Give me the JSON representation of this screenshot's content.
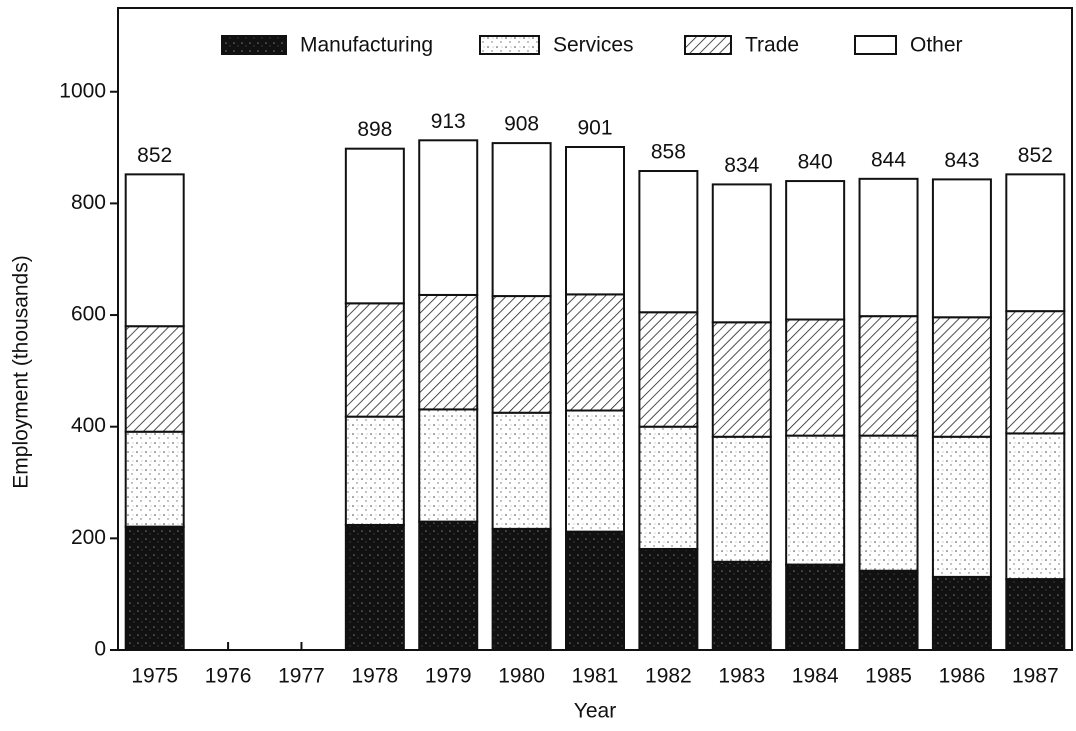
{
  "chart_data": {
    "type": "stacked_bar",
    "x_label": "Year",
    "y_label": "Employment (thousands)",
    "categories": [
      "1975",
      "1976",
      "1977",
      "1978",
      "1979",
      "1980",
      "1981",
      "1982",
      "1983",
      "1984",
      "1985",
      "1986",
      "1987"
    ],
    "series": [
      {
        "name": "Manufacturing",
        "color": "#111111",
        "pattern": "speckle",
        "values": [
          221,
          null,
          null,
          224,
          230,
          217,
          212,
          181,
          158,
          153,
          142,
          131,
          127
        ]
      },
      {
        "name": "Services",
        "color": "#ffffff",
        "pattern": "dots",
        "values": [
          170,
          null,
          null,
          194,
          201,
          208,
          217,
          219,
          224,
          231,
          242,
          251,
          261
        ]
      },
      {
        "name": "Trade",
        "color": "#ffffff",
        "pattern": "hatch",
        "values": [
          189,
          null,
          null,
          203,
          205,
          209,
          208,
          205,
          205,
          208,
          214,
          214,
          219
        ]
      },
      {
        "name": "Other",
        "color": "#ffffff",
        "pattern": "none",
        "values": [
          272,
          null,
          null,
          277,
          277,
          274,
          264,
          253,
          247,
          248,
          246,
          247,
          245
        ]
      }
    ],
    "totals": [
      852,
      null,
      null,
      898,
      913,
      908,
      901,
      858,
      834,
      840,
      844,
      843,
      852
    ],
    "ylim": [
      0,
      1150
    ],
    "yticks": [
      0,
      200,
      400,
      600,
      800,
      1000
    ],
    "legend": "top",
    "grid": false
  }
}
